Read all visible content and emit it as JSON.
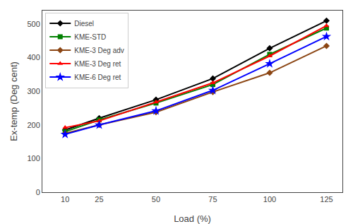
{
  "chart_data": {
    "type": "line",
    "xlabel": "Load (%)",
    "ylabel": "Ex-temp (Deg cent)",
    "x": [
      10,
      25,
      50,
      75,
      100,
      125
    ],
    "series": [
      {
        "name": "Diesel",
        "color": "black",
        "marker": "diamond",
        "values": [
          185,
          220,
          275,
          338,
          428,
          510
        ]
      },
      {
        "name": "KME-STD",
        "color": "#008000",
        "marker": "square",
        "values": [
          180,
          215,
          265,
          320,
          410,
          488
        ]
      },
      {
        "name": "KME-3 Deg adv",
        "color": "#8B4513",
        "marker": "diamond",
        "values": [
          175,
          200,
          238,
          298,
          355,
          435
        ]
      },
      {
        "name": "KME-3 Deg ret",
        "color": "red",
        "marker": "triangle-up",
        "values": [
          192,
          212,
          268,
          325,
          405,
          495
        ]
      },
      {
        "name": "KME-6 Deg ret",
        "color": "blue",
        "marker": "star",
        "values": [
          172,
          200,
          242,
          303,
          382,
          463
        ]
      }
    ],
    "xlim": [
      0,
      132
    ],
    "ylim": [
      0,
      540
    ],
    "xticks": [
      10,
      25,
      50,
      75,
      100,
      125
    ],
    "yticks": [
      0,
      100,
      200,
      300,
      400,
      500
    ],
    "legend": "upper left",
    "grid": false
  }
}
